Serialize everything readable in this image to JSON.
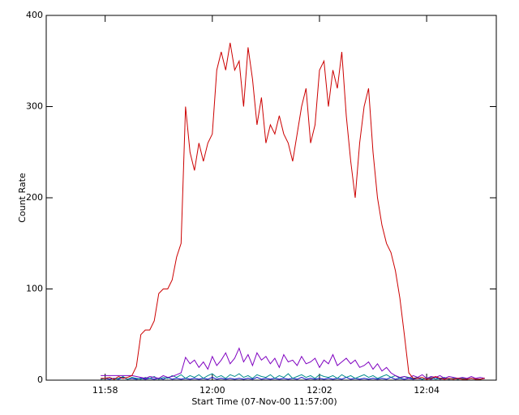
{
  "chart_data": {
    "type": "line",
    "x_label": "Start Time (07-Nov-00 11:57:00)",
    "y_label": "Count Rate",
    "x": [
      55,
      60,
      65,
      70,
      75,
      80,
      85,
      90,
      95,
      100,
      105,
      110,
      115,
      120,
      125,
      130,
      135,
      140,
      145,
      150,
      155,
      160,
      165,
      170,
      175,
      180,
      185,
      190,
      195,
      200,
      205,
      210,
      215,
      220,
      225,
      230,
      235,
      240,
      245,
      250,
      255,
      260,
      265,
      270,
      275,
      280,
      285,
      290,
      295,
      300,
      305,
      310,
      315,
      320,
      325,
      330,
      335,
      340,
      345,
      350,
      355,
      360,
      365,
      370,
      375,
      380,
      385,
      390,
      395,
      400,
      405,
      410,
      415,
      420,
      425,
      430,
      435,
      440,
      445,
      450,
      455,
      460,
      465,
      470,
      475,
      480,
      485
    ],
    "series": [
      {
        "color": "#cc0000",
        "values": [
          2,
          2,
          3,
          1,
          4,
          2,
          3,
          5,
          15,
          50,
          55,
          55,
          65,
          95,
          100,
          100,
          110,
          135,
          150,
          300,
          250,
          230,
          260,
          240,
          260,
          270,
          340,
          360,
          340,
          370,
          340,
          350,
          300,
          365,
          330,
          280,
          310,
          260,
          280,
          270,
          290,
          270,
          260,
          240,
          270,
          300,
          320,
          260,
          280,
          340,
          350,
          300,
          340,
          320,
          360,
          290,
          240,
          200,
          260,
          300,
          320,
          250,
          200,
          170,
          150,
          140,
          120,
          90,
          50,
          8,
          2,
          2,
          3,
          1,
          2,
          4,
          2,
          1,
          2,
          1,
          2,
          1,
          1,
          2,
          1,
          1,
          2
        ]
      },
      {
        "color": "#7f00c0",
        "values": [
          5,
          5,
          5,
          5,
          5,
          5,
          5,
          5,
          4,
          3,
          2,
          4,
          3,
          2,
          5,
          3,
          4,
          6,
          8,
          25,
          18,
          22,
          14,
          20,
          12,
          26,
          16,
          22,
          30,
          18,
          24,
          35,
          20,
          28,
          16,
          30,
          22,
          26,
          18,
          24,
          14,
          28,
          20,
          22,
          16,
          26,
          18,
          20,
          24,
          14,
          22,
          18,
          28,
          16,
          20,
          24,
          18,
          22,
          14,
          16,
          20,
          12,
          18,
          10,
          14,
          8,
          5,
          3,
          4,
          2,
          5,
          3,
          6,
          2,
          4,
          3,
          5,
          2,
          4,
          3,
          2,
          3,
          2,
          4,
          2,
          3,
          2
        ]
      },
      {
        "color": "#008b8b",
        "values": [
          1,
          2,
          3,
          1,
          2,
          4,
          1,
          3,
          2,
          1,
          3,
          2,
          4,
          1,
          3,
          2,
          5,
          3,
          6,
          2,
          5,
          3,
          6,
          2,
          5,
          7,
          3,
          5,
          2,
          6,
          4,
          7,
          3,
          5,
          2,
          6,
          4,
          3,
          6,
          2,
          5,
          3,
          7,
          2,
          4,
          6,
          3,
          5,
          2,
          6,
          4,
          3,
          5,
          2,
          6,
          3,
          5,
          2,
          4,
          6,
          3,
          5,
          2,
          4,
          6,
          3,
          5,
          2,
          4,
          3,
          2,
          3,
          1,
          2,
          3,
          1,
          2,
          3,
          1,
          2,
          1,
          2,
          1,
          2,
          1,
          1,
          2
        ]
      },
      {
        "color": "#0000c0",
        "values": [
          1,
          2,
          1,
          2,
          1,
          3,
          1,
          2,
          1,
          2,
          1,
          2,
          1,
          2,
          1,
          3,
          1,
          2,
          1,
          2,
          1,
          2,
          1,
          2,
          1,
          3,
          1,
          2,
          1,
          2,
          1,
          2,
          1,
          2,
          1,
          3,
          1,
          2,
          1,
          2,
          1,
          2,
          1,
          2,
          1,
          3,
          1,
          2,
          1,
          2,
          1,
          2,
          1,
          2,
          1,
          3,
          1,
          2,
          1,
          2,
          1,
          2,
          1,
          2,
          1,
          3,
          1,
          2,
          1,
          2,
          1,
          2,
          1,
          2,
          1,
          3,
          1,
          2,
          1,
          2,
          1,
          2,
          1,
          2,
          1,
          1,
          2
        ]
      }
    ],
    "xlim": [
      -6,
      498
    ],
    "xticks": [
      {
        "value": 60,
        "label": "11:58"
      },
      {
        "value": 180,
        "label": "12:00"
      },
      {
        "value": 300,
        "label": "12:02"
      },
      {
        "value": 420,
        "label": "12:04"
      }
    ],
    "ylim": [
      0,
      400
    ],
    "yticks": [
      0,
      100,
      200,
      300,
      400
    ]
  }
}
